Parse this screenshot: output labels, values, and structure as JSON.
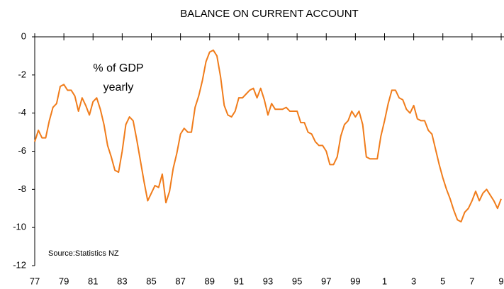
{
  "chart_data": {
    "type": "line",
    "title": "BALANCE ON CURRENT ACCOUNT",
    "annotation": [
      "% of GDP",
      "yearly"
    ],
    "source": "Source:Statistics NZ",
    "x": [
      1977,
      1977.25,
      1977.5,
      1977.75,
      1978,
      1978.25,
      1978.5,
      1978.75,
      1979,
      1979.25,
      1979.5,
      1979.75,
      1980,
      1980.25,
      1980.5,
      1980.75,
      1981,
      1981.25,
      1981.5,
      1981.75,
      1982,
      1982.25,
      1982.5,
      1982.75,
      1983,
      1983.25,
      1983.5,
      1983.75,
      1984,
      1984.25,
      1984.5,
      1984.75,
      1985,
      1985.25,
      1985.5,
      1985.75,
      1986,
      1986.25,
      1986.5,
      1986.75,
      1987,
      1987.25,
      1987.5,
      1987.75,
      1988,
      1988.25,
      1988.5,
      1988.75,
      1989,
      1989.25,
      1989.5,
      1989.75,
      1990,
      1990.25,
      1990.5,
      1990.75,
      1991,
      1991.25,
      1991.5,
      1991.75,
      1992,
      1992.25,
      1992.5,
      1992.75,
      1993,
      1993.25,
      1993.5,
      1993.75,
      1994,
      1994.25,
      1994.5,
      1994.75,
      1995,
      1995.25,
      1995.5,
      1995.75,
      1996,
      1996.25,
      1996.5,
      1996.75,
      1997,
      1997.25,
      1997.5,
      1997.75,
      1998,
      1998.25,
      1998.5,
      1998.75,
      1999,
      1999.25,
      1999.5,
      1999.75,
      2000,
      2000.25,
      2000.5,
      2000.75,
      2001,
      2001.25,
      2001.5,
      2001.75,
      2002,
      2002.25,
      2002.5,
      2002.75,
      2003,
      2003.25,
      2003.5,
      2003.75,
      2004,
      2004.25,
      2004.5,
      2004.75,
      2005,
      2005.25,
      2005.5,
      2005.75,
      2006,
      2006.25,
      2006.5,
      2006.75,
      2007,
      2007.25,
      2007.5,
      2007.75,
      2008,
      2008.25,
      2008.5,
      2008.75,
      2009
    ],
    "series": [
      {
        "name": "Balance on current account",
        "color": "#f07c1b",
        "values": [
          -5.5,
          -4.9,
          -5.3,
          -5.3,
          -4.4,
          -3.7,
          -3.5,
          -2.6,
          -2.5,
          -2.8,
          -2.8,
          -3.1,
          -3.9,
          -3.2,
          -3.6,
          -4.1,
          -3.4,
          -3.2,
          -3.8,
          -4.6,
          -5.7,
          -6.3,
          -7.0,
          -7.1,
          -6.0,
          -4.6,
          -4.2,
          -4.4,
          -5.4,
          -6.5,
          -7.6,
          -8.6,
          -8.2,
          -7.8,
          -7.9,
          -7.2,
          -8.7,
          -8.1,
          -6.9,
          -6.1,
          -5.1,
          -4.8,
          -5.0,
          -5.0,
          -3.7,
          -3.1,
          -2.3,
          -1.3,
          -0.8,
          -0.7,
          -1.0,
          -2.1,
          -3.6,
          -4.1,
          -4.2,
          -3.9,
          -3.2,
          -3.2,
          -3.0,
          -2.8,
          -2.7,
          -3.2,
          -2.7,
          -3.3,
          -4.1,
          -3.5,
          -3.8,
          -3.8,
          -3.8,
          -3.7,
          -3.9,
          -3.9,
          -3.9,
          -4.5,
          -4.5,
          -5.0,
          -5.1,
          -5.5,
          -5.7,
          -5.7,
          -6.0,
          -6.7,
          -6.7,
          -6.3,
          -5.2,
          -4.6,
          -4.4,
          -3.9,
          -4.2,
          -3.9,
          -4.6,
          -6.3,
          -6.4,
          -6.4,
          -6.4,
          -5.2,
          -4.4,
          -3.5,
          -2.8,
          -2.8,
          -3.2,
          -3.3,
          -3.8,
          -4.0,
          -3.6,
          -4.3,
          -4.4,
          -4.4,
          -4.9,
          -5.1,
          -5.9,
          -6.7,
          -7.4,
          -8.0,
          -8.5,
          -9.1,
          -9.6,
          -9.7,
          -9.2,
          -9.0,
          -8.6,
          -8.1,
          -8.6,
          -8.2,
          -8.0,
          -8.3,
          -8.6,
          -9.0,
          -8.5
        ]
      }
    ],
    "xlim": [
      1977,
      2009
    ],
    "xticks": [
      {
        "value": 1977,
        "label": "77"
      },
      {
        "value": 1979,
        "label": "79"
      },
      {
        "value": 1981,
        "label": "81"
      },
      {
        "value": 1983,
        "label": "83"
      },
      {
        "value": 1985,
        "label": "85"
      },
      {
        "value": 1987,
        "label": "87"
      },
      {
        "value": 1989,
        "label": "89"
      },
      {
        "value": 1991,
        "label": "91"
      },
      {
        "value": 1993,
        "label": "93"
      },
      {
        "value": 1995,
        "label": "95"
      },
      {
        "value": 1997,
        "label": "97"
      },
      {
        "value": 1999,
        "label": "99"
      },
      {
        "value": 2001,
        "label": "1"
      },
      {
        "value": 2003,
        "label": "3"
      },
      {
        "value": 2005,
        "label": "5"
      },
      {
        "value": 2007,
        "label": "7"
      },
      {
        "value": 2009,
        "label": "9"
      }
    ],
    "ylim": [
      -12,
      0
    ],
    "yticks": [
      0,
      -2,
      -4,
      -6,
      -8,
      -10,
      -12
    ]
  }
}
